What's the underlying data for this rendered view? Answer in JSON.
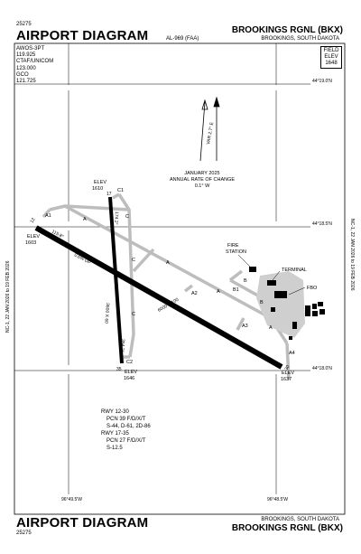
{
  "header": {
    "doc_number_top": "25275",
    "title_top": "AIRPORT DIAGRAM",
    "airport_name_top": "BROOKINGS RGNL (BKX)",
    "city_state_top": "BROOKINGS, SOUTH DAKOTA",
    "al_number": "AL-969 (FAA)"
  },
  "comms": {
    "lines": [
      "AWOS-3PT",
      "119.925",
      "CTAF/UNICOM",
      "123.000",
      "GCO",
      "121.725"
    ]
  },
  "field_elevation": {
    "label1": "FIELD",
    "label2": "ELEV",
    "value": "1648"
  },
  "grid": {
    "lat_top": "44°19.0'N",
    "lat_mid": "44°18.5'N",
    "lat_bottom": "44°18.0'N",
    "lon_left": "96°49.5'W",
    "lon_right": "96°48.5'W"
  },
  "cycle": {
    "left_text": "NC-1, 22 JAN 2026 to 19 FEB 2026",
    "right_text": "NC-1, 22 JAN 2026 to 19 FEB 2026"
  },
  "magnetic": {
    "var_label": "VAR 2.7° E",
    "change_line1": "JANUARY 2025",
    "change_line2": "ANNUAL RATE OF CHANGE",
    "change_line3": "0.1° W"
  },
  "runways": {
    "rwy_12_30": {
      "dims": "6000 X 100",
      "end_12": "12",
      "end_30": "30",
      "hdg_12": "115.8°",
      "hdg_30": "295.8°",
      "gradient": "0.6% UP"
    },
    "rwy_17_35": {
      "dims": "3600 X 60",
      "end_17": "17",
      "end_35": "35",
      "hdg_17": "174.2°",
      "hdg_35": "354.2°"
    }
  },
  "elevations": {
    "elev_1610": {
      "label": "ELEV",
      "value": "1610"
    },
    "elev_1603": {
      "label": "ELEV",
      "value": "1603"
    },
    "elev_1646": {
      "label": "ELEV",
      "value": "1646"
    },
    "elev_1637": {
      "label": "ELEV",
      "value": "1637"
    }
  },
  "taxiways": [
    "A",
    "A1",
    "A2",
    "A3",
    "A4",
    "B",
    "B1",
    "C",
    "C1",
    "C2"
  ],
  "facilities": {
    "fire_station_1": "FIRE",
    "fire_station_2": "STATION",
    "terminal": "TERMINAL",
    "fbo": "FBO"
  },
  "pcn": {
    "lines": [
      "RWY 12-30",
      "PCN 39 F/D/X/T",
      "S-44, D-61, 2D-86",
      "RWY 17-35",
      "PCN 27 F/D/X/T",
      "S-12.5"
    ]
  },
  "footer": {
    "title_bottom": "AIRPORT DIAGRAM",
    "city_state_bottom": "BROOKINGS, SOUTH DAKOTA",
    "airport_name_bottom": "BROOKINGS RGNL (BKX)",
    "doc_number_bottom": "25275"
  }
}
